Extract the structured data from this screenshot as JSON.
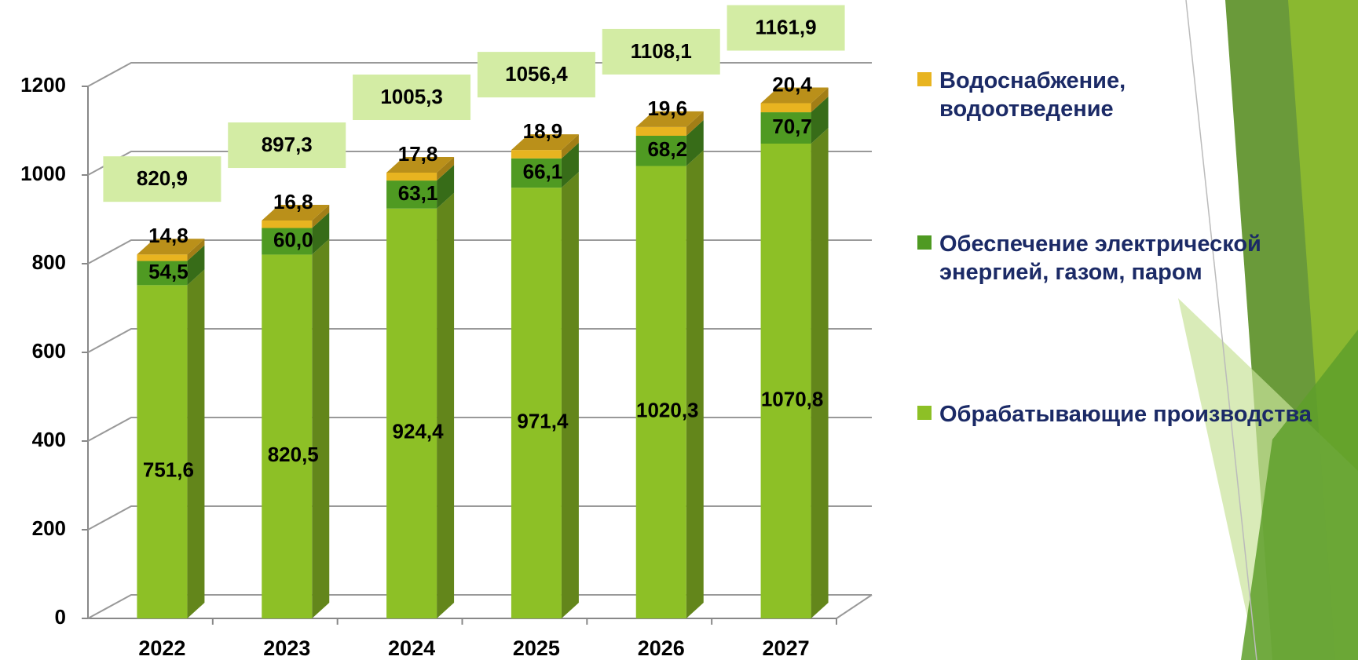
{
  "chart_data": {
    "type": "stacked-bar-3d",
    "categories": [
      "2022",
      "2023",
      "2024",
      "2025",
      "2026",
      "2027"
    ],
    "series": [
      {
        "name": "Обрабатывающие производства",
        "color": "#8dc026",
        "values": [
          751.6,
          820.5,
          924.4,
          971.4,
          1020.3,
          1070.8
        ],
        "value_labels": [
          "751,6",
          "820,5",
          "924,4",
          "971,4",
          "1020,3",
          "1070,8"
        ]
      },
      {
        "name": "Обеспечение электрической энергией, газом, паром",
        "color": "#4f9a22",
        "values": [
          54.5,
          60.0,
          63.1,
          66.1,
          68.2,
          70.7
        ],
        "value_labels": [
          "54,5",
          "60,0",
          "63,1",
          "66,1",
          "68,2",
          "70,7"
        ]
      },
      {
        "name": "Водоснабжение, водоотведение",
        "color": "#e8b420",
        "values": [
          14.8,
          16.8,
          17.8,
          18.9,
          19.6,
          20.4
        ],
        "value_labels": [
          "14,8",
          "16,8",
          "17,8",
          "18,9",
          "19,6",
          "20,4"
        ]
      }
    ],
    "totals": [
      820.9,
      897.3,
      1005.3,
      1056.4,
      1108.1,
      1161.9
    ],
    "total_labels": [
      "820,9",
      "897,3",
      "1005,3",
      "1056,4",
      "1108,1",
      "1161,9"
    ],
    "ylim": [
      0,
      1200
    ],
    "yticks": [
      0,
      200,
      400,
      600,
      800,
      1000,
      1200
    ],
    "grid": true
  }
}
